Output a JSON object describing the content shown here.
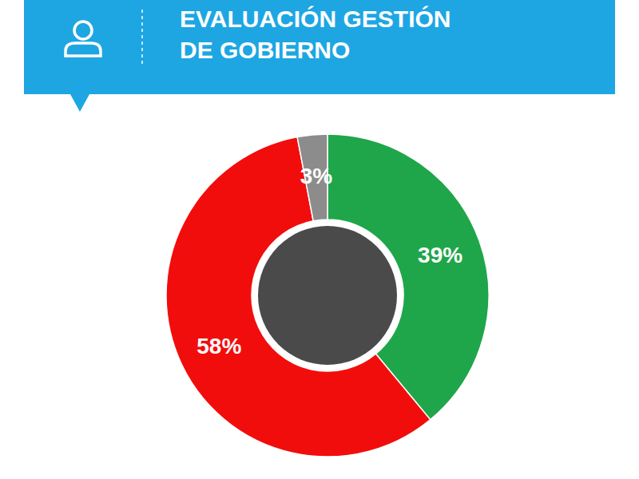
{
  "chart_data": {
    "type": "pie",
    "title": "EVALUACIÓN GESTIÓN DE GOBIERNO",
    "values": [
      39,
      58,
      3
    ],
    "value_labels": [
      "39%",
      "58%",
      "3%"
    ],
    "colors": [
      "#1fa64a",
      "#f20d0d",
      "#8c8c8c"
    ],
    "data_labels": true
  }
}
